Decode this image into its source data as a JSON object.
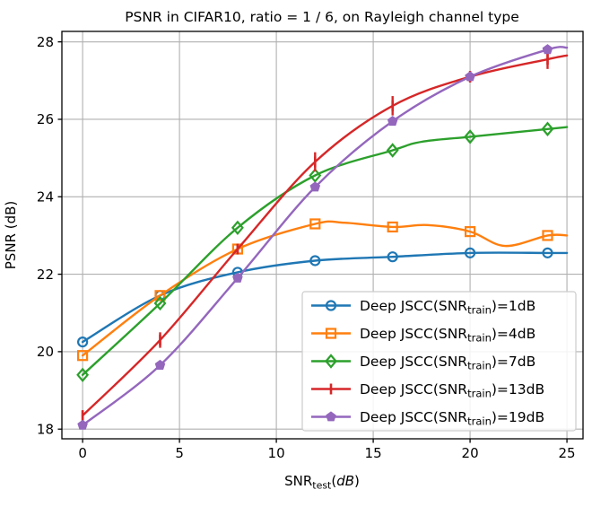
{
  "chart_data": {
    "type": "line",
    "title": "PSNR in CIFAR10, ratio = 1 / 6, on Rayleigh channel type",
    "ylabel": "PSNR (dB)",
    "xlabel": {
      "prefix": "SNR",
      "sub": "test",
      "open": "(",
      "italic": "dB",
      "close": ")"
    },
    "x_ticks": [
      0,
      5,
      10,
      15,
      20,
      25
    ],
    "y_ticks": [
      18,
      20,
      22,
      24,
      26,
      28
    ],
    "xlim": [
      -1.07,
      25.83
    ],
    "ylim": [
      17.75,
      28.27
    ],
    "grid": true,
    "legend_position": "lower right",
    "series": [
      {
        "label": {
          "prefix": "Deep JSCC(SNR",
          "sub": "train",
          "suffix": ")=1dB"
        },
        "color": "#1f77b4",
        "marker": "circle",
        "path_x": [
          0,
          4,
          8,
          12,
          16,
          20,
          24,
          25
        ],
        "path_y": [
          20.25,
          21.45,
          22.05,
          22.35,
          22.45,
          22.55,
          22.55,
          22.55
        ],
        "marker_x": [
          0,
          4,
          8,
          12,
          16,
          20,
          24
        ],
        "marker_y": [
          20.25,
          21.45,
          22.05,
          22.35,
          22.45,
          22.55,
          22.55
        ]
      },
      {
        "label": {
          "prefix": "Deep JSCC(SNR",
          "sub": "train",
          "suffix": ")=4dB"
        },
        "color": "#ff7f0e",
        "marker": "square",
        "path_x": [
          0,
          4,
          8,
          12,
          13.5,
          16,
          17.8,
          20,
          21.8,
          24,
          25
        ],
        "path_y": [
          19.9,
          21.45,
          22.65,
          23.3,
          23.33,
          23.22,
          23.27,
          23.1,
          22.73,
          23.0,
          23.0
        ],
        "marker_x": [
          0,
          4,
          8,
          12,
          16,
          20,
          24
        ],
        "marker_y": [
          19.9,
          21.45,
          22.65,
          23.3,
          23.22,
          23.1,
          23.0
        ]
      },
      {
        "label": {
          "prefix": "Deep JSCC(SNR",
          "sub": "train",
          "suffix": ")=7dB"
        },
        "color": "#2ca02c",
        "marker": "diamond",
        "path_x": [
          0,
          4,
          8,
          12,
          16,
          17.5,
          20,
          24,
          25
        ],
        "path_y": [
          19.4,
          21.25,
          23.2,
          24.55,
          25.2,
          25.42,
          25.55,
          25.75,
          25.8
        ],
        "marker_x": [
          0,
          4,
          8,
          12,
          16,
          20,
          24
        ],
        "marker_y": [
          19.4,
          21.25,
          23.2,
          24.55,
          25.2,
          25.55,
          25.75
        ]
      },
      {
        "label": {
          "prefix": "Deep JSCC(SNR",
          "sub": "train",
          "suffix": ")=13dB"
        },
        "color": "#d62728",
        "marker": "vline",
        "path_x": [
          0,
          4,
          8,
          12,
          16,
          20,
          24,
          25
        ],
        "path_y": [
          18.35,
          20.3,
          22.65,
          24.9,
          26.35,
          27.1,
          27.55,
          27.65
        ],
        "marker_x": [
          0,
          4,
          8,
          12,
          16,
          20,
          24
        ],
        "marker_y": [
          18.35,
          20.3,
          22.65,
          24.9,
          26.35,
          27.1,
          27.55
        ],
        "yerr": [
          0.12,
          0.2,
          0.12,
          0.25,
          0.25,
          0.15,
          0.25
        ]
      },
      {
        "label": {
          "prefix": "Deep JSCC(SNR",
          "sub": "train",
          "suffix": ")=19dB"
        },
        "color": "#9467bd",
        "marker": "pentagon",
        "path_x": [
          0,
          4,
          8,
          12,
          16,
          20,
          24,
          25
        ],
        "path_y": [
          18.1,
          19.65,
          21.9,
          24.25,
          25.95,
          27.1,
          27.8,
          27.85
        ],
        "marker_x": [
          0,
          4,
          8,
          12,
          16,
          20,
          24
        ],
        "marker_y": [
          18.1,
          19.65,
          21.9,
          24.25,
          25.95,
          27.1,
          27.8
        ]
      }
    ]
  },
  "colors": {
    "background": "#ffffff",
    "grid": "#b0b0b0",
    "spine": "#000000",
    "legend_border": "#cccccc",
    "legend_fill": "#ffffff"
  }
}
